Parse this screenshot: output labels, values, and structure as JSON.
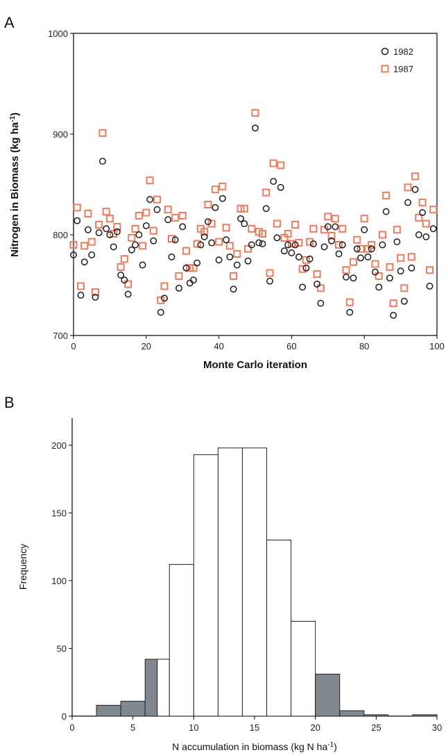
{
  "chart_data": [
    {
      "panel": "A",
      "type": "scatter",
      "xlabel": "Monte Carlo iteration",
      "ylabel": "Nitrogen in Biomass (kg ha",
      "ylabel_sup": "-1",
      "ylabel_close": ")",
      "xlim": [
        0,
        100
      ],
      "ylim": [
        700,
        1000
      ],
      "xticks": [
        "0",
        "20",
        "40",
        "60",
        "80",
        "100"
      ],
      "yticks": [
        "700",
        "800",
        "900",
        "1000"
      ],
      "legend_position": "top-right",
      "colors": {
        "s1982": "#1a1a1a",
        "s1987": "#f07a5a"
      },
      "series": [
        {
          "name": "1982",
          "marker": "circle",
          "values": [
            780,
            814,
            740,
            773,
            805,
            780,
            738,
            802,
            873,
            806,
            800,
            788,
            803,
            760,
            755,
            741,
            785,
            790,
            800,
            770,
            809,
            835,
            794,
            825,
            723,
            737,
            815,
            778,
            795,
            747,
            808,
            767,
            752,
            755,
            772,
            790,
            798,
            813,
            792,
            827,
            775,
            836,
            795,
            778,
            746,
            770,
            816,
            811,
            774,
            790,
            906,
            792,
            791,
            826,
            754,
            853,
            797,
            847,
            784,
            790,
            782,
            790,
            778,
            748,
            767,
            776,
            791,
            751,
            732,
            788,
            808,
            794,
            808,
            781,
            790,
            758,
            723,
            757,
            786,
            777,
            805,
            778,
            786,
            763,
            748,
            790,
            823,
            757,
            720,
            793,
            764,
            734,
            832,
            767,
            845,
            800,
            822,
            798,
            749,
            806
          ]
        },
        {
          "name": "1987",
          "marker": "square",
          "values": [
            790,
            827,
            749,
            789,
            821,
            793,
            743,
            810,
            901,
            823,
            816,
            801,
            808,
            768,
            776,
            751,
            797,
            806,
            819,
            789,
            822,
            854,
            804,
            835,
            735,
            749,
            825,
            796,
            817,
            759,
            819,
            784,
            767,
            767,
            791,
            806,
            803,
            830,
            811,
            845,
            793,
            848,
            807,
            789,
            759,
            781,
            826,
            826,
            786,
            806,
            921,
            803,
            801,
            842,
            762,
            871,
            811,
            869,
            797,
            801,
            791,
            810,
            792,
            766,
            775,
            793,
            806,
            761,
            747,
            805,
            818,
            799,
            816,
            790,
            806,
            765,
            733,
            773,
            795,
            786,
            816,
            786,
            790,
            771,
            759,
            800,
            839,
            768,
            732,
            805,
            777,
            747,
            847,
            778,
            858,
            817,
            832,
            811,
            765,
            825
          ]
        }
      ]
    },
    {
      "panel": "B",
      "type": "bar",
      "xlabel": "N accumulation in biomass (kg N ha",
      "xlabel_sup": "-1",
      "xlabel_close": ")",
      "ylabel": "Frequency",
      "xlim": [
        0,
        30
      ],
      "ylim": [
        0,
        220
      ],
      "xticks": [
        "0",
        "5",
        "10",
        "15",
        "20",
        "25",
        "30"
      ],
      "yticks": [
        "0",
        "50",
        "100",
        "150",
        "200"
      ],
      "colors": {
        "shaded": "#808890",
        "open": "#ffffff"
      },
      "bins": [
        {
          "start": 2,
          "end": 4,
          "value": 8,
          "shaded": true
        },
        {
          "start": 4,
          "end": 6,
          "value": 11,
          "shaded": true
        },
        {
          "start": 6,
          "end": 7,
          "value": 42,
          "shaded": true
        },
        {
          "start": 7,
          "end": 8,
          "value": 42,
          "shaded": false
        },
        {
          "start": 8,
          "end": 10,
          "value": 112,
          "shaded": false
        },
        {
          "start": 10,
          "end": 12,
          "value": 193,
          "shaded": false
        },
        {
          "start": 12,
          "end": 14,
          "value": 198,
          "shaded": false
        },
        {
          "start": 14,
          "end": 16,
          "value": 198,
          "shaded": false
        },
        {
          "start": 16,
          "end": 18,
          "value": 130,
          "shaded": false
        },
        {
          "start": 18,
          "end": 20,
          "value": 70,
          "shaded": false
        },
        {
          "start": 20,
          "end": 22,
          "value": 31,
          "shaded": true
        },
        {
          "start": 22,
          "end": 24,
          "value": 4,
          "shaded": true
        },
        {
          "start": 24,
          "end": 26,
          "value": 1,
          "shaded": true
        },
        {
          "start": 26,
          "end": 28,
          "value": 0,
          "shaded": true
        },
        {
          "start": 28,
          "end": 30,
          "value": 1,
          "shaded": true
        }
      ]
    }
  ]
}
